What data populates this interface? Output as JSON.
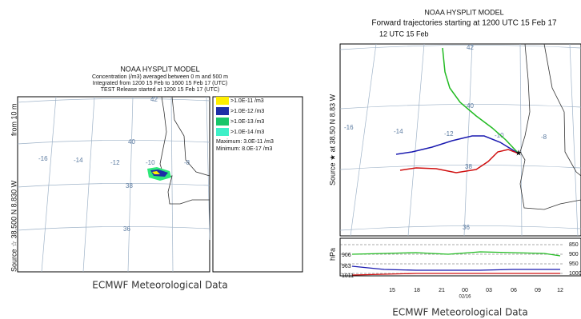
{
  "left": {
    "title": "NOAA HYSPLIT MODEL",
    "subtitle_lines": [
      "Concentration (/m3) averaged between     0 m and   500 m",
      "Integrated from 1200 15 Feb to 1600 15 Feb 17 (UTC)",
      "TEST Release started at 1200 15 Feb 17 (UTC)"
    ],
    "side_label": "Source ☆ 38.500 N   8.830 W",
    "height_label": "from   10 m",
    "legend": [
      ">1.0E-11 /m3",
      ">1.0E-12 /m3",
      ">1.0E-13 /m3",
      ">1.0E-14 /m3"
    ],
    "maximum": "Maximum:  3.0E-11 /m3",
    "minimum": "Minimum:  8.0E-17 /m3",
    "lon_labels": [
      "-16",
      "-14",
      "-12",
      "-10",
      "-8"
    ],
    "lat_labels": [
      "42",
      "40",
      "38",
      "36"
    ],
    "footer": "ECMWF Meteorological Data"
  },
  "right": {
    "title": "NOAA HYSPLIT MODEL",
    "subtitle": "Forward trajectories starting at 1200 UTC 15 Feb 17",
    "start_label": "12 UTC 15 Feb",
    "side_label": "Source ★ at 38.50 N   8.83 W",
    "lon_labels": [
      "-16",
      "-14",
      "-12",
      "-10",
      "-8"
    ],
    "lat_labels": [
      "42",
      "40",
      "38",
      "36"
    ],
    "height_unit": "hPa",
    "start_heights": [
      "906",
      "963",
      "1011"
    ],
    "pressure_ticks": [
      "850",
      "900",
      "950",
      "1000"
    ],
    "time_labels": [
      "15",
      "18",
      "21",
      "00",
      "03",
      "06",
      "09",
      "12"
    ],
    "date_label": "02/16",
    "footer": "ECMWF Meteorological Data"
  }
}
